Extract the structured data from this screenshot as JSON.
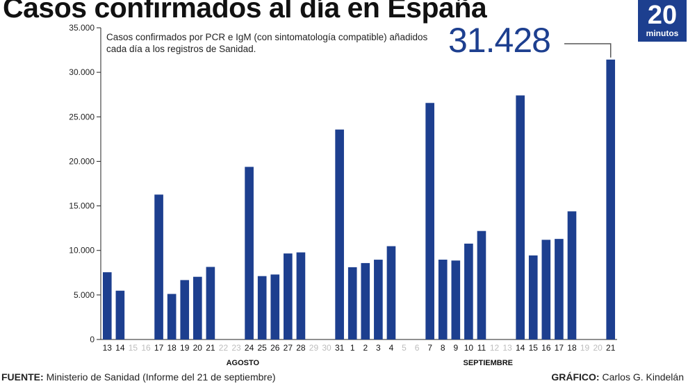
{
  "header": {
    "title": "Casos confirmados al día en España",
    "logo_number": "20",
    "logo_text": "minutos"
  },
  "annotation": {
    "subtitle": "Casos confirmados por PCR e IgM (con sintomatología compatible) añadidos cada día a los registros de Sanidad.",
    "highlight_value": "31.428"
  },
  "footer": {
    "source_label": "FUENTE:",
    "source_text": "Ministerio de Sanidad (Informe del 21 de septiembre)",
    "credit_label": "GRÁFICO:",
    "credit_text": "Carlos G. Kindelán"
  },
  "colors": {
    "bar": "#1d3f8f",
    "weekend_label": "#bdbdbd",
    "axis": "#222222"
  },
  "chart_data": {
    "type": "bar",
    "title": "Casos confirmados al día en España",
    "xlabel": "",
    "ylabel": "",
    "ylim": [
      0,
      35000
    ],
    "yticks": [
      0,
      5000,
      10000,
      15000,
      20000,
      25000,
      30000,
      35000
    ],
    "ytick_labels": [
      "0",
      "5.000",
      "10.000",
      "15.000",
      "20.000",
      "25.000",
      "30.000",
      "35.000"
    ],
    "categories": [
      "13",
      "14",
      "15",
      "16",
      "17",
      "18",
      "19",
      "20",
      "21",
      "22",
      "23",
      "24",
      "25",
      "26",
      "27",
      "28",
      "29",
      "30",
      "31",
      "1",
      "2",
      "3",
      "4",
      "5",
      "6",
      "7",
      "8",
      "9",
      "10",
      "11",
      "12",
      "13",
      "14",
      "15",
      "16",
      "17",
      "18",
      "19",
      "20",
      "21"
    ],
    "muted_categories": [
      2,
      3,
      9,
      10,
      16,
      17,
      23,
      24,
      30,
      31,
      37,
      38
    ],
    "values": [
      7550,
      5479,
      0,
      0,
      16269,
      5114,
      6671,
      7039,
      8148,
      0,
      0,
      19382,
      7117,
      7296,
      9658,
      9779,
      0,
      0,
      23572,
      8115,
      8581,
      8959,
      10476,
      0,
      0,
      26560,
      8964,
      8866,
      10764,
      12183,
      0,
      0,
      27404,
      9437,
      11193,
      11291,
      14389,
      0,
      0,
      31428
    ],
    "month_labels": [
      {
        "text": "AGOSTO",
        "center_index": 10.5
      },
      {
        "text": "SEPTIEMBRE",
        "center_index": 29.5
      }
    ]
  }
}
